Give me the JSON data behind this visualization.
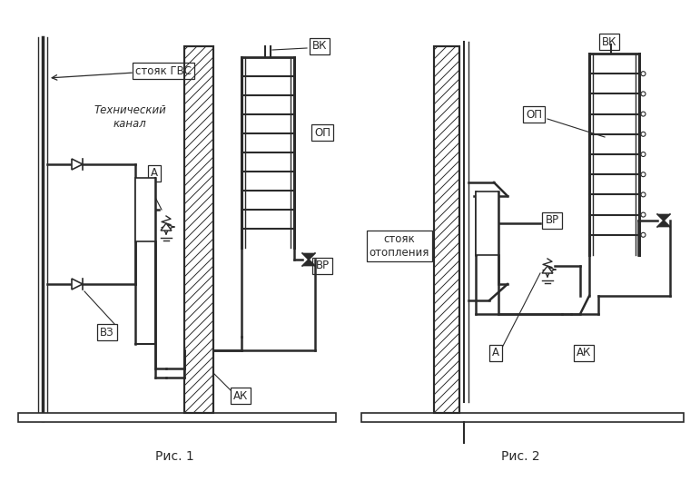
{
  "bg_color": "#ffffff",
  "line_color": "#2a2a2a",
  "fig1_title": "Рис. 1",
  "fig2_title": "Рис. 2",
  "labels": {
    "stoyak_gvs": "стояк ГВС",
    "tech_kanal": "Технический\nканал",
    "A1": "А",
    "VK1": "ВК",
    "OP1": "ОП",
    "VP1": "ВР",
    "AK1": "АК",
    "VZ1": "ВЗ",
    "stoyak_otop": "стояк\nотопления",
    "A2": "А",
    "VK2": "ВК",
    "OP2": "ОП",
    "VP2": "ВР",
    "AK2": "АК"
  }
}
